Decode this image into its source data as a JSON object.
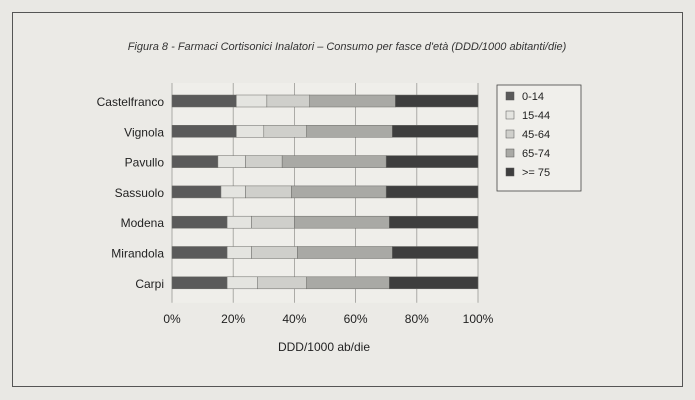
{
  "chart_data": {
    "type": "bar",
    "stacked": true,
    "orientation": "horizontal",
    "percent_stacked": true,
    "title": "Figura 8 - Farmaci Cortisonici Inalatori – Consumo per fasce d'età (DDD/1000 abitanti/die)",
    "xlabel": "DDD/1000 ab/die",
    "ylabel": "",
    "xlim": [
      0,
      100
    ],
    "x_ticks": [
      "0%",
      "20%",
      "40%",
      "60%",
      "80%",
      "100%"
    ],
    "categories": [
      "Castelfranco",
      "Vignola",
      "Pavullo",
      "Sassuolo",
      "Modena",
      "Mirandola",
      "Carpi"
    ],
    "series": [
      {
        "name": "0-14",
        "color": "#5a5a5a",
        "values": [
          21,
          21,
          15,
          16,
          18,
          18,
          18
        ]
      },
      {
        "name": "15-44",
        "color": "#e4e4e0",
        "values": [
          10,
          9,
          9,
          8,
          8,
          8,
          10
        ]
      },
      {
        "name": "45-64",
        "color": "#cfcfcb",
        "values": [
          14,
          14,
          12,
          15,
          14,
          15,
          16
        ]
      },
      {
        "name": "65-74",
        "color": "#a9a9a5",
        "values": [
          28,
          28,
          34,
          31,
          31,
          31,
          27
        ]
      },
      {
        "name": ">= 75",
        "color": "#3e3e3e",
        "values": [
          27,
          28,
          30,
          30,
          29,
          28,
          29
        ]
      }
    ],
    "grid": true,
    "legend_position": "right"
  }
}
